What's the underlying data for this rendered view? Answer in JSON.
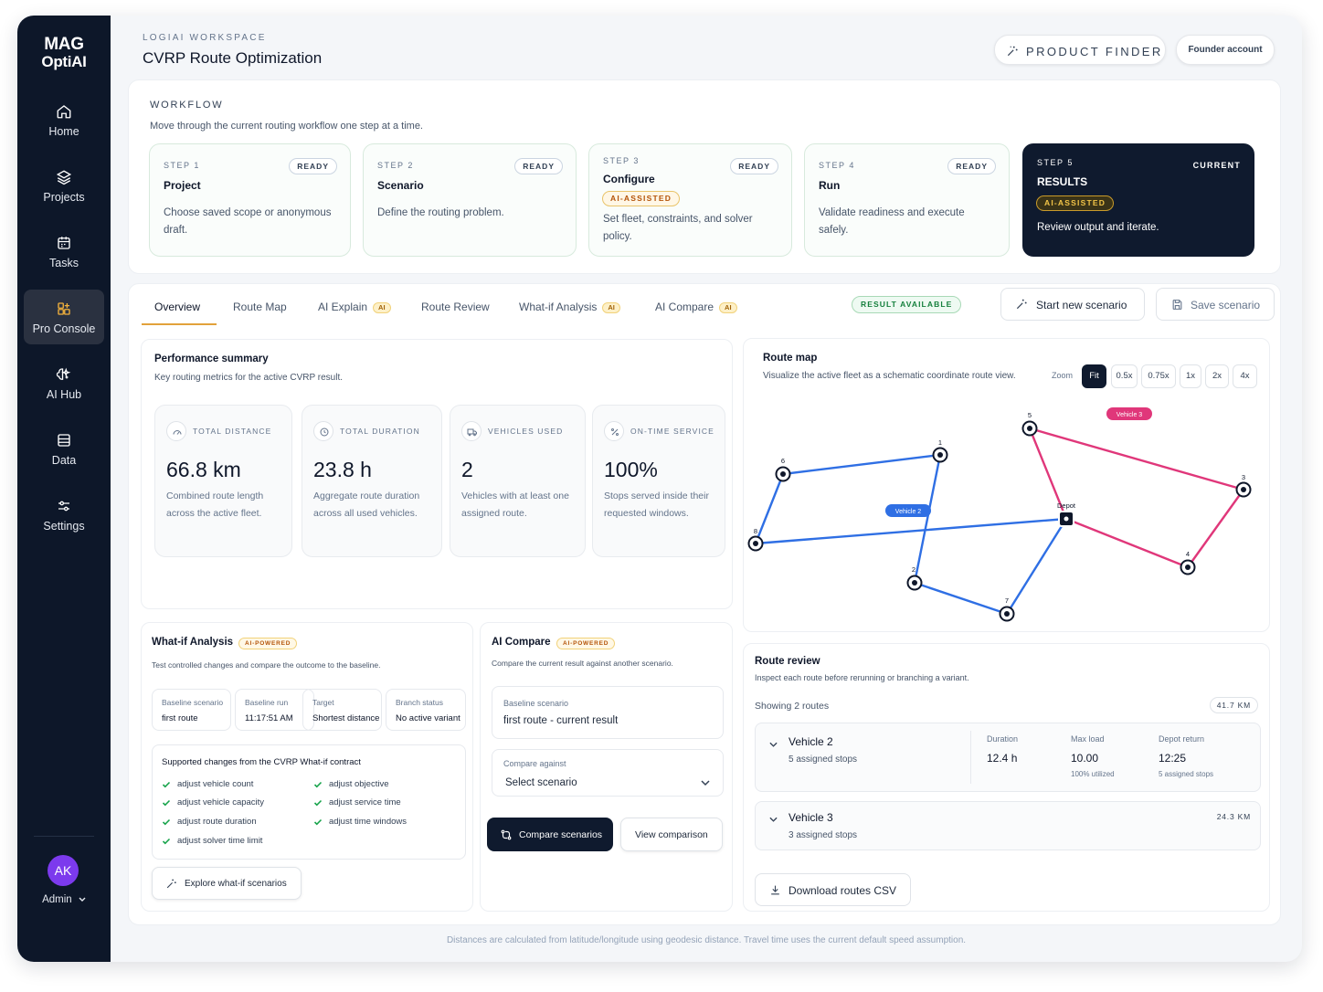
{
  "sidebar": {
    "logo_line1": "MAG",
    "logo_line2": "OptiAI",
    "items": [
      {
        "label": "Home",
        "icon": "home-icon"
      },
      {
        "label": "Projects",
        "icon": "layers-icon"
      },
      {
        "label": "Tasks",
        "icon": "calendar-icon"
      },
      {
        "label": "Pro Console",
        "icon": "grid-plus-icon",
        "active": true
      },
      {
        "label": "AI Hub",
        "icon": "sparkle-brain-icon"
      },
      {
        "label": "Data",
        "icon": "database-icon"
      },
      {
        "label": "Settings",
        "icon": "sliders-icon"
      }
    ],
    "user": {
      "initials": "AK",
      "name": "Admin"
    }
  },
  "header": {
    "workspace_label": "LOGIAI WORKSPACE",
    "title": "CVRP Route Optimization",
    "product_finder": "PRODUCT FINDER",
    "account": "Founder account"
  },
  "workflow": {
    "label": "WORKFLOW",
    "subtitle": "Move through the current routing workflow one step at a time.",
    "steps": [
      {
        "num": "STEP 1",
        "title": "Project",
        "badge": "READY",
        "desc": "Choose saved scope or anonymous draft."
      },
      {
        "num": "STEP 2",
        "title": "Scenario",
        "badge": "READY",
        "desc": "Define the routing problem."
      },
      {
        "num": "STEP 3",
        "title": "Configure",
        "badge": "READY",
        "ai": "AI-ASSISTED",
        "desc": "Set fleet, constraints, and solver policy."
      },
      {
        "num": "STEP 4",
        "title": "Run",
        "badge": "READY",
        "desc": "Validate readiness and execute safely."
      },
      {
        "num": "STEP 5",
        "title": "RESULTS",
        "badge": "CURRENT",
        "ai": "AI-ASSISTED",
        "desc": "Review output and iterate."
      }
    ]
  },
  "tabs": [
    {
      "label": "Overview",
      "active": true
    },
    {
      "label": "Route Map"
    },
    {
      "label": "AI Explain",
      "ai": "AI"
    },
    {
      "label": "Route Review"
    },
    {
      "label": "What-if Analysis",
      "ai": "AI"
    },
    {
      "label": "AI Compare",
      "ai": "AI"
    }
  ],
  "result_badge": "RESULT AVAILABLE",
  "actions": {
    "start_new": "Start new scenario",
    "save": "Save scenario"
  },
  "performance": {
    "title": "Performance summary",
    "subtitle": "Key routing metrics for the active CVRP result.",
    "metrics": [
      {
        "label": "TOTAL DISTANCE",
        "value": "66.8 km",
        "desc": "Combined route length across the active fleet.",
        "icon": "gauge-icon"
      },
      {
        "label": "TOTAL DURATION",
        "value": "23.8 h",
        "desc": "Aggregate route duration across all used vehicles.",
        "icon": "clock-icon"
      },
      {
        "label": "VEHICLES USED",
        "value": "2",
        "desc": "Vehicles with at least one assigned route.",
        "icon": "truck-icon"
      },
      {
        "label": "ON-TIME SERVICE",
        "value": "100%",
        "desc": "Stops served inside their requested windows.",
        "icon": "percent-icon"
      }
    ]
  },
  "whatif": {
    "title": "What-if Analysis",
    "badge": "AI-POWERED",
    "subtitle": "Test controlled changes and compare the outcome to the baseline.",
    "kv": [
      {
        "k": "Baseline scenario",
        "v": "first route"
      },
      {
        "k": "Baseline run",
        "v": "11:17:51 AM"
      },
      {
        "k": "Target",
        "v": "Shortest distance"
      },
      {
        "k": "Branch status",
        "v": "No active variant"
      }
    ],
    "supported_title": "Supported changes from the CVRP What-if contract",
    "changes": [
      "adjust vehicle count",
      "adjust vehicle capacity",
      "adjust route duration",
      "adjust solver time limit",
      "adjust objective",
      "adjust service time",
      "adjust time windows"
    ],
    "explore": "Explore what-if scenarios"
  },
  "compare": {
    "title": "AI Compare",
    "badge": "AI-POWERED",
    "subtitle": "Compare the current result against another scenario.",
    "baseline_label": "Baseline scenario",
    "baseline_value": "first route - current result",
    "against_label": "Compare against",
    "against_value": "Select scenario",
    "compare_btn": "Compare scenarios",
    "view_btn": "View comparison"
  },
  "route_map": {
    "title": "Route map",
    "subtitle": "Visualize the active fleet as a schematic coordinate route view.",
    "zoom_label": "Zoom",
    "zoom_options": [
      "Fit",
      "0.5x",
      "0.75x",
      "1x",
      "2x",
      "4x"
    ],
    "zoom_selected": "Fit",
    "depot_label": "Depot",
    "colors": {
      "vehicle2": "#2f6fe4",
      "vehicle3": "#e0377a"
    },
    "nodes": [
      {
        "id": "1",
        "kind": "stop"
      },
      {
        "id": "2",
        "kind": "stop"
      },
      {
        "id": "3",
        "kind": "stop"
      },
      {
        "id": "4",
        "kind": "stop"
      },
      {
        "id": "5",
        "kind": "stop"
      },
      {
        "id": "6",
        "kind": "stop"
      },
      {
        "id": "7",
        "kind": "stop"
      },
      {
        "id": "8",
        "kind": "stop"
      },
      {
        "id": "Depot",
        "kind": "depot"
      }
    ],
    "routes": [
      {
        "vehicle": "Vehicle 2",
        "sequence": [
          "Depot",
          "8",
          "6",
          "1",
          "2",
          "7",
          "Depot"
        ]
      },
      {
        "vehicle": "Vehicle 3",
        "sequence": [
          "Depot",
          "5",
          "3",
          "4",
          "Depot"
        ]
      }
    ]
  },
  "route_review": {
    "title": "Route review",
    "subtitle": "Inspect each route before rerunning or branching a variant.",
    "showing": "Showing 2 routes",
    "total_badge": "41.7 KM",
    "routes": [
      {
        "name": "Vehicle 2",
        "stops": "5 assigned stops",
        "duration_label": "Duration",
        "duration": "12.4 h",
        "load_label": "Max load",
        "load": "10.00",
        "load_note": "100% utilized",
        "return_label": "Depot return",
        "return": "12:25",
        "return_note": "5 assigned stops"
      },
      {
        "name": "Vehicle 3",
        "stops": "3 assigned stops",
        "km": "24.3 KM"
      }
    ],
    "download": "Download routes CSV"
  },
  "footer": "Distances are calculated from latitude/longitude using geodesic distance. Travel time uses the current default speed assumption."
}
